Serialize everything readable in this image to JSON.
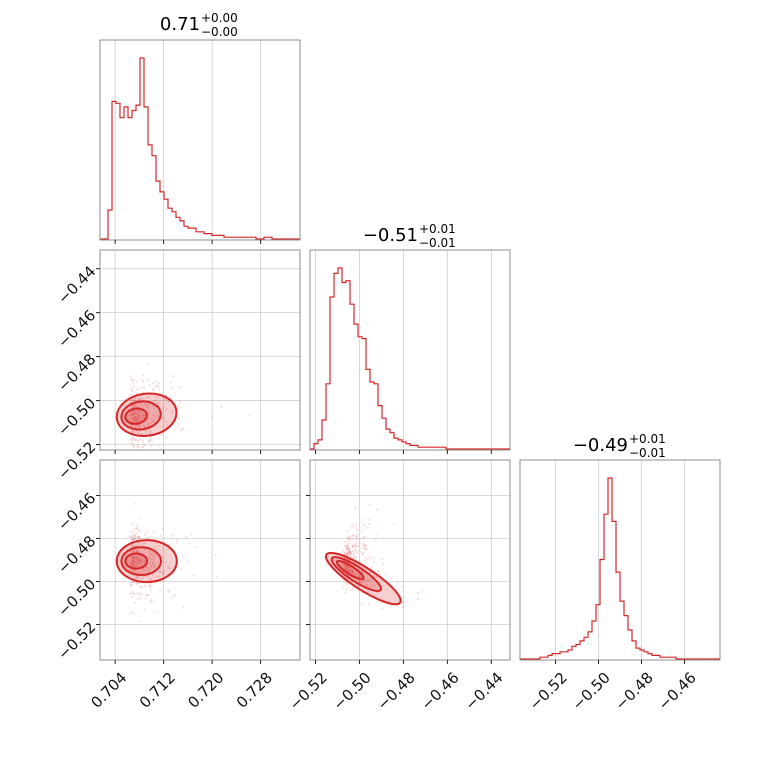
{
  "chart_data": {
    "type": "corner",
    "color": "#d62728",
    "titles": [
      {
        "value": "0.71",
        "plus": "+0.00",
        "minus": "−0.00"
      },
      {
        "value": "−0.51",
        "plus": "+0.01",
        "minus": "−0.01"
      },
      {
        "value": "−0.49",
        "plus": "+0.01",
        "minus": "−0.01"
      }
    ],
    "params": [
      {
        "range": [
          0.7015,
          0.7345
        ],
        "ticks": [
          0.704,
          0.712,
          0.72,
          0.728
        ],
        "tick_labels": [
          "0.704",
          "0.712",
          "0.720",
          "0.728"
        ]
      },
      {
        "range": [
          -0.5225,
          -0.4315
        ],
        "ticks": [
          -0.52,
          -0.5,
          -0.48,
          -0.46,
          -0.44
        ],
        "tick_labels": [
          "−0.52",
          "−0.50",
          "−0.48",
          "−0.46",
          "−0.44"
        ]
      },
      {
        "range": [
          -0.5365,
          -0.4435
        ],
        "ticks": [
          -0.52,
          -0.5,
          -0.48,
          -0.46
        ],
        "tick_labels": [
          "−0.52",
          "−0.50",
          "−0.48",
          "−0.46"
        ]
      }
    ],
    "histograms": [
      [
        0,
        0,
        0.16,
        0.76,
        0.75,
        0.67,
        0.73,
        0.67,
        0.71,
        0.74,
        1.0,
        0.73,
        0.52,
        0.46,
        0.32,
        0.26,
        0.22,
        0.17,
        0.15,
        0.12,
        0.1,
        0.07,
        0.06,
        0.06,
        0.04,
        0.04,
        0.03,
        0.03,
        0.02,
        0.02,
        0.02,
        0.01,
        0.01,
        0.01,
        0.01,
        0.01,
        0.01,
        0.01,
        0.01,
        0,
        0,
        0.01,
        0.01,
        0,
        0,
        0,
        0,
        0,
        0,
        0
      ],
      [
        0,
        0.03,
        0.05,
        0.16,
        0.36,
        0.84,
        0.97,
        1.0,
        0.92,
        0.93,
        0.8,
        0.69,
        0.62,
        0.61,
        0.44,
        0.37,
        0.36,
        0.24,
        0.17,
        0.11,
        0.09,
        0.06,
        0.05,
        0.04,
        0.03,
        0.02,
        0.02,
        0.01,
        0.01,
        0.01,
        0.01,
        0.01,
        0.01,
        0.01,
        0,
        0,
        0,
        0,
        0,
        0,
        0,
        0,
        0,
        0,
        0,
        0,
        0,
        0,
        0,
        0
      ],
      [
        0,
        0,
        0,
        0,
        0,
        0.01,
        0.01,
        0.02,
        0.03,
        0.03,
        0.04,
        0.04,
        0.05,
        0.07,
        0.08,
        0.1,
        0.12,
        0.15,
        0.21,
        0.3,
        0.55,
        0.8,
        1.0,
        0.76,
        0.48,
        0.32,
        0.24,
        0.16,
        0.1,
        0.06,
        0.05,
        0.04,
        0.03,
        0.02,
        0.02,
        0.01,
        0.01,
        0.01,
        0.01,
        0,
        0,
        0,
        0,
        0,
        0,
        0,
        0,
        0,
        0,
        0
      ]
    ],
    "pairs": [
      {
        "x_param": 0,
        "y_param": 1,
        "center": [
          0.7065,
          -0.5075
        ],
        "rho": 0.15
      },
      {
        "x_param": 0,
        "y_param": 2,
        "center": [
          0.7065,
          -0.4905
        ],
        "rho": -0.05
      },
      {
        "x_param": 1,
        "y_param": 2,
        "center": [
          -0.5075,
          -0.4925
        ],
        "rho": -0.86
      }
    ]
  }
}
